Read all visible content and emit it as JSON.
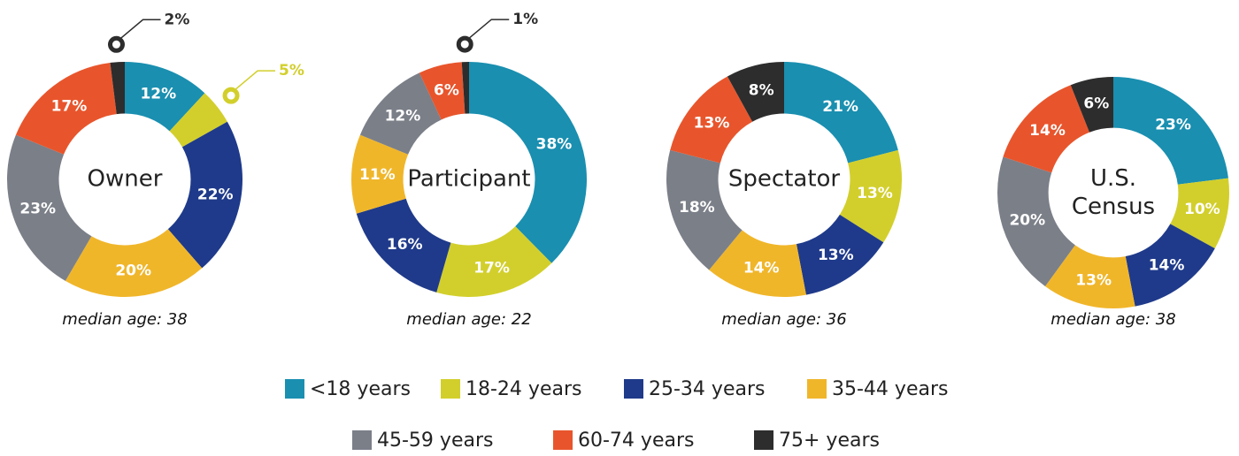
{
  "chart_data": [
    {
      "type": "pie",
      "title": "Owner",
      "values": [
        12,
        5,
        22,
        20,
        23,
        17,
        2
      ],
      "value_labels": [
        "12%",
        "5%",
        "22%",
        "20%",
        "23%",
        "17%",
        "2%"
      ],
      "note": "median age: 38"
    },
    {
      "type": "pie",
      "title": "Participant",
      "values": [
        38,
        17,
        16,
        11,
        12,
        6,
        1
      ],
      "value_labels": [
        "38%",
        "17%",
        "16%",
        "11%",
        "12%",
        "6%",
        "1%"
      ],
      "note": "median age: 22"
    },
    {
      "type": "pie",
      "title": "Spectator",
      "values": [
        21,
        13,
        13,
        14,
        18,
        13,
        8
      ],
      "value_labels": [
        "21%",
        "13%",
        "13%",
        "14%",
        "18%",
        "13%",
        "8%"
      ],
      "note": "median age: 36"
    },
    {
      "type": "pie",
      "title": [
        "U.S.",
        "Census"
      ],
      "values": [
        23,
        10,
        14,
        13,
        20,
        14,
        6
      ],
      "value_labels": [
        "23%",
        "10%",
        "14%",
        "13%",
        "20%",
        "14%",
        "6%"
      ],
      "note": "median age: 38"
    }
  ],
  "legend": {
    "categories": [
      "<18 years",
      "18-24 years",
      "25-34 years",
      "35-44 years",
      "45-59 years",
      "60-74 years",
      "75+ years"
    ],
    "colors": [
      "#1a8fb0",
      "#d2cf2c",
      "#1f3a8a",
      "#f0b62a",
      "#7b7f88",
      "#e8552c",
      "#2d2d2d"
    ]
  }
}
